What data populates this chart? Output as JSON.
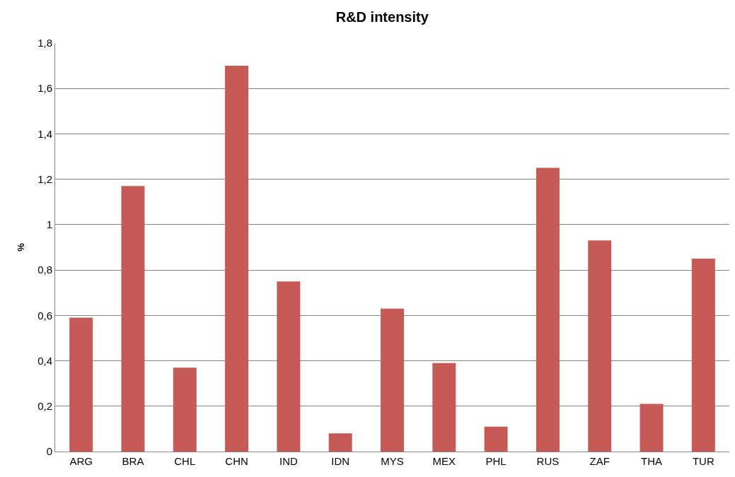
{
  "chart_data": {
    "type": "bar",
    "title": "R&D intensity",
    "ylabel": "%",
    "categories": [
      "ARG",
      "BRA",
      "CHL",
      "CHN",
      "IND",
      "IDN",
      "MYS",
      "MEX",
      "PHL",
      "RUS",
      "ZAF",
      "THA",
      "TUR"
    ],
    "values": [
      0.59,
      1.17,
      0.37,
      1.7,
      0.75,
      0.08,
      0.63,
      0.39,
      0.11,
      1.25,
      0.93,
      0.21,
      0.85
    ],
    "color": "#c65a57",
    "ylim": [
      0,
      1.8
    ],
    "yticks": [
      0,
      {
        "value": 0.2,
        "label": "0,2"
      },
      {
        "value": 0.4,
        "label": "0,4"
      },
      {
        "value": 0.6,
        "label": "0,6"
      },
      {
        "value": 0.8,
        "label": "0,8"
      },
      1,
      {
        "value": 1.2,
        "label": "1,2"
      },
      {
        "value": 1.4,
        "label": "1,4"
      },
      {
        "value": 1.6,
        "label": "1,6"
      },
      {
        "value": 1.8,
        "label": "1,8"
      }
    ],
    "grid": "y"
  }
}
